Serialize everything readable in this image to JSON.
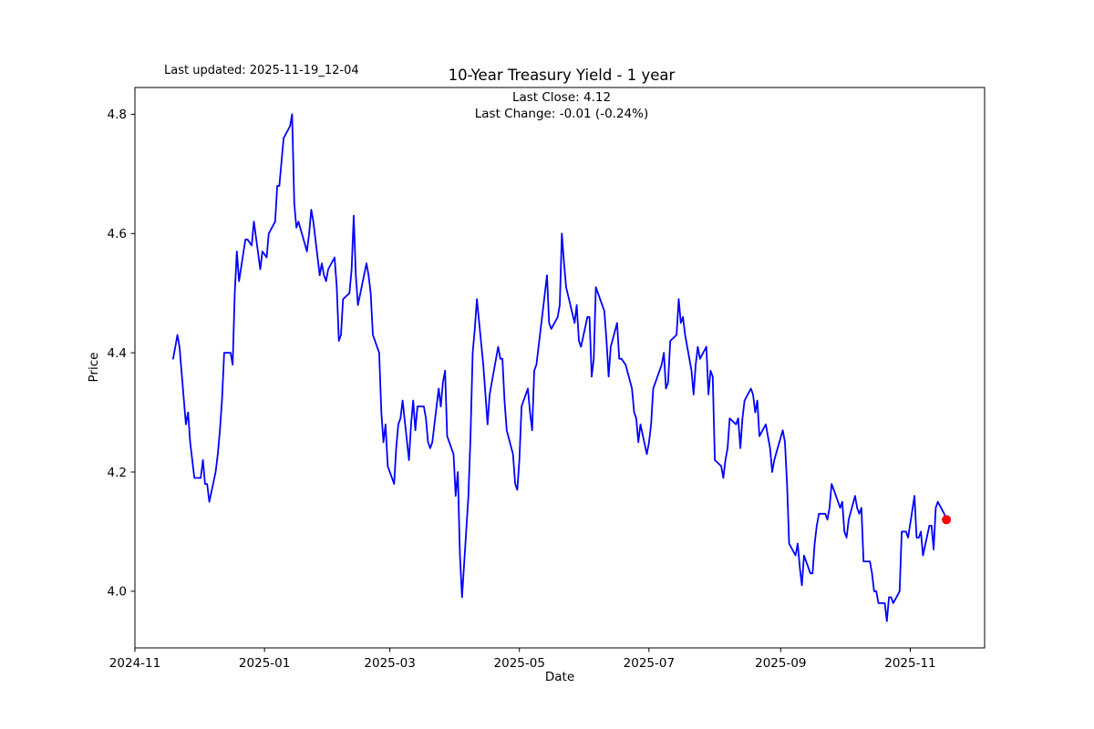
{
  "figure": {
    "last_updated": "Last updated: 2025-11-19_12-04",
    "title": "10-Year Treasury Yield - 1 year",
    "subtitle_line1": "Last Close: 4.12",
    "subtitle_line2": "Last Change: -0.01 (-0.24%)"
  },
  "chart_data": {
    "type": "line",
    "title": "10-Year Treasury Yield - 1 year",
    "xlabel": "Date",
    "ylabel": "Price",
    "grid": false,
    "legend": "none",
    "xlim": [
      "2024-11-01",
      "2025-12-06"
    ],
    "ylim": [
      3.905,
      4.845
    ],
    "yticks": [
      {
        "label": "4.0",
        "value": 4.0
      },
      {
        "label": "4.2",
        "value": 4.2
      },
      {
        "label": "4.4",
        "value": 4.4
      },
      {
        "label": "4.6",
        "value": 4.6
      },
      {
        "label": "4.8",
        "value": 4.8
      }
    ],
    "xticks": [
      {
        "label": "2024-11",
        "date": "2024-11-01"
      },
      {
        "label": "2025-01",
        "date": "2025-01-01"
      },
      {
        "label": "2025-03",
        "date": "2025-03-01"
      },
      {
        "label": "2025-05",
        "date": "2025-05-01"
      },
      {
        "label": "2025-07",
        "date": "2025-07-01"
      },
      {
        "label": "2025-09",
        "date": "2025-09-01"
      },
      {
        "label": "2025-11",
        "date": "2025-11-01"
      }
    ],
    "last_close": 4.12,
    "last_change": -0.01,
    "last_change_pct": "-0.24%",
    "last_point": {
      "date": "2025-11-18",
      "value": 4.12,
      "color": "#ff0000"
    },
    "series": [
      {
        "name": "10-Year Treasury Yield",
        "color": "#0000ff",
        "points": [
          [
            "2024-11-19",
            4.39
          ],
          [
            "2024-11-20",
            4.41
          ],
          [
            "2024-11-21",
            4.43
          ],
          [
            "2024-11-22",
            4.41
          ],
          [
            "2024-11-25",
            4.28
          ],
          [
            "2024-11-26",
            4.3
          ],
          [
            "2024-11-27",
            4.25
          ],
          [
            "2024-11-29",
            4.19
          ],
          [
            "2024-12-02",
            4.19
          ],
          [
            "2024-12-03",
            4.22
          ],
          [
            "2024-12-04",
            4.18
          ],
          [
            "2024-12-05",
            4.18
          ],
          [
            "2024-12-06",
            4.15
          ],
          [
            "2024-12-09",
            4.2
          ],
          [
            "2024-12-10",
            4.23
          ],
          [
            "2024-12-11",
            4.27
          ],
          [
            "2024-12-12",
            4.32
          ],
          [
            "2024-12-13",
            4.4
          ],
          [
            "2024-12-16",
            4.4
          ],
          [
            "2024-12-17",
            4.38
          ],
          [
            "2024-12-18",
            4.5
          ],
          [
            "2024-12-19",
            4.57
          ],
          [
            "2024-12-20",
            4.52
          ],
          [
            "2024-12-23",
            4.59
          ],
          [
            "2024-12-24",
            4.59
          ],
          [
            "2024-12-26",
            4.58
          ],
          [
            "2024-12-27",
            4.62
          ],
          [
            "2024-12-30",
            4.54
          ],
          [
            "2024-12-31",
            4.57
          ],
          [
            "2025-01-02",
            4.56
          ],
          [
            "2025-01-03",
            4.6
          ],
          [
            "2025-01-06",
            4.62
          ],
          [
            "2025-01-07",
            4.68
          ],
          [
            "2025-01-08",
            4.68
          ],
          [
            "2025-01-10",
            4.76
          ],
          [
            "2025-01-13",
            4.78
          ],
          [
            "2025-01-14",
            4.8
          ],
          [
            "2025-01-15",
            4.65
          ],
          [
            "2025-01-16",
            4.61
          ],
          [
            "2025-01-17",
            4.62
          ],
          [
            "2025-01-21",
            4.57
          ],
          [
            "2025-01-22",
            4.6
          ],
          [
            "2025-01-23",
            4.64
          ],
          [
            "2025-01-24",
            4.62
          ],
          [
            "2025-01-27",
            4.53
          ],
          [
            "2025-01-28",
            4.55
          ],
          [
            "2025-01-29",
            4.53
          ],
          [
            "2025-01-30",
            4.52
          ],
          [
            "2025-01-31",
            4.54
          ],
          [
            "2025-02-03",
            4.56
          ],
          [
            "2025-02-04",
            4.51
          ],
          [
            "2025-02-05",
            4.42
          ],
          [
            "2025-02-06",
            4.43
          ],
          [
            "2025-02-07",
            4.49
          ],
          [
            "2025-02-10",
            4.5
          ],
          [
            "2025-02-11",
            4.54
          ],
          [
            "2025-02-12",
            4.63
          ],
          [
            "2025-02-13",
            4.53
          ],
          [
            "2025-02-14",
            4.48
          ],
          [
            "2025-02-18",
            4.55
          ],
          [
            "2025-02-19",
            4.53
          ],
          [
            "2025-02-20",
            4.5
          ],
          [
            "2025-02-21",
            4.43
          ],
          [
            "2025-02-24",
            4.4
          ],
          [
            "2025-02-25",
            4.3
          ],
          [
            "2025-02-26",
            4.25
          ],
          [
            "2025-02-27",
            4.28
          ],
          [
            "2025-02-28",
            4.21
          ],
          [
            "2025-03-03",
            4.18
          ],
          [
            "2025-03-04",
            4.24
          ],
          [
            "2025-03-05",
            4.28
          ],
          [
            "2025-03-06",
            4.29
          ],
          [
            "2025-03-07",
            4.32
          ],
          [
            "2025-03-10",
            4.22
          ],
          [
            "2025-03-11",
            4.28
          ],
          [
            "2025-03-12",
            4.32
          ],
          [
            "2025-03-13",
            4.27
          ],
          [
            "2025-03-14",
            4.31
          ],
          [
            "2025-03-17",
            4.31
          ],
          [
            "2025-03-18",
            4.29
          ],
          [
            "2025-03-19",
            4.25
          ],
          [
            "2025-03-20",
            4.24
          ],
          [
            "2025-03-21",
            4.25
          ],
          [
            "2025-03-24",
            4.34
          ],
          [
            "2025-03-25",
            4.31
          ],
          [
            "2025-03-26",
            4.35
          ],
          [
            "2025-03-27",
            4.37
          ],
          [
            "2025-03-28",
            4.26
          ],
          [
            "2025-03-31",
            4.23
          ],
          [
            "2025-04-01",
            4.16
          ],
          [
            "2025-04-02",
            4.2
          ],
          [
            "2025-04-03",
            4.06
          ],
          [
            "2025-04-04",
            3.99
          ],
          [
            "2025-04-07",
            4.16
          ],
          [
            "2025-04-08",
            4.26
          ],
          [
            "2025-04-09",
            4.4
          ],
          [
            "2025-04-10",
            4.44
          ],
          [
            "2025-04-11",
            4.49
          ],
          [
            "2025-04-14",
            4.38
          ],
          [
            "2025-04-15",
            4.33
          ],
          [
            "2025-04-16",
            4.28
          ],
          [
            "2025-04-17",
            4.33
          ],
          [
            "2025-04-21",
            4.41
          ],
          [
            "2025-04-22",
            4.39
          ],
          [
            "2025-04-23",
            4.39
          ],
          [
            "2025-04-24",
            4.32
          ],
          [
            "2025-04-25",
            4.27
          ],
          [
            "2025-04-28",
            4.23
          ],
          [
            "2025-04-29",
            4.18
          ],
          [
            "2025-04-30",
            4.17
          ],
          [
            "2025-05-01",
            4.22
          ],
          [
            "2025-05-02",
            4.31
          ],
          [
            "2025-05-05",
            4.34
          ],
          [
            "2025-05-06",
            4.3
          ],
          [
            "2025-05-07",
            4.27
          ],
          [
            "2025-05-08",
            4.37
          ],
          [
            "2025-05-09",
            4.38
          ],
          [
            "2025-05-12",
            4.47
          ],
          [
            "2025-05-13",
            4.5
          ],
          [
            "2025-05-14",
            4.53
          ],
          [
            "2025-05-15",
            4.45
          ],
          [
            "2025-05-16",
            4.44
          ],
          [
            "2025-05-19",
            4.46
          ],
          [
            "2025-05-20",
            4.48
          ],
          [
            "2025-05-21",
            4.6
          ],
          [
            "2025-05-22",
            4.55
          ],
          [
            "2025-05-23",
            4.51
          ],
          [
            "2025-05-27",
            4.45
          ],
          [
            "2025-05-28",
            4.48
          ],
          [
            "2025-05-29",
            4.42
          ],
          [
            "2025-05-30",
            4.41
          ],
          [
            "2025-06-02",
            4.46
          ],
          [
            "2025-06-03",
            4.46
          ],
          [
            "2025-06-04",
            4.36
          ],
          [
            "2025-06-05",
            4.39
          ],
          [
            "2025-06-06",
            4.51
          ],
          [
            "2025-06-09",
            4.48
          ],
          [
            "2025-06-10",
            4.47
          ],
          [
            "2025-06-11",
            4.42
          ],
          [
            "2025-06-12",
            4.36
          ],
          [
            "2025-06-13",
            4.41
          ],
          [
            "2025-06-16",
            4.45
          ],
          [
            "2025-06-17",
            4.39
          ],
          [
            "2025-06-18",
            4.39
          ],
          [
            "2025-06-20",
            4.38
          ],
          [
            "2025-06-23",
            4.34
          ],
          [
            "2025-06-24",
            4.3
          ],
          [
            "2025-06-25",
            4.29
          ],
          [
            "2025-06-26",
            4.25
          ],
          [
            "2025-06-27",
            4.28
          ],
          [
            "2025-06-30",
            4.23
          ],
          [
            "2025-07-01",
            4.25
          ],
          [
            "2025-07-02",
            4.28
          ],
          [
            "2025-07-03",
            4.34
          ],
          [
            "2025-07-07",
            4.38
          ],
          [
            "2025-07-08",
            4.4
          ],
          [
            "2025-07-09",
            4.34
          ],
          [
            "2025-07-10",
            4.35
          ],
          [
            "2025-07-11",
            4.42
          ],
          [
            "2025-07-14",
            4.43
          ],
          [
            "2025-07-15",
            4.49
          ],
          [
            "2025-07-16",
            4.45
          ],
          [
            "2025-07-17",
            4.46
          ],
          [
            "2025-07-18",
            4.43
          ],
          [
            "2025-07-21",
            4.37
          ],
          [
            "2025-07-22",
            4.33
          ],
          [
            "2025-07-23",
            4.38
          ],
          [
            "2025-07-24",
            4.41
          ],
          [
            "2025-07-25",
            4.39
          ],
          [
            "2025-07-28",
            4.41
          ],
          [
            "2025-07-29",
            4.33
          ],
          [
            "2025-07-30",
            4.37
          ],
          [
            "2025-07-31",
            4.36
          ],
          [
            "2025-08-01",
            4.22
          ],
          [
            "2025-08-04",
            4.21
          ],
          [
            "2025-08-05",
            4.19
          ],
          [
            "2025-08-06",
            4.22
          ],
          [
            "2025-08-07",
            4.24
          ],
          [
            "2025-08-08",
            4.29
          ],
          [
            "2025-08-11",
            4.28
          ],
          [
            "2025-08-12",
            4.29
          ],
          [
            "2025-08-13",
            4.24
          ],
          [
            "2025-08-14",
            4.29
          ],
          [
            "2025-08-15",
            4.32
          ],
          [
            "2025-08-18",
            4.34
          ],
          [
            "2025-08-19",
            4.33
          ],
          [
            "2025-08-20",
            4.3
          ],
          [
            "2025-08-21",
            4.32
          ],
          [
            "2025-08-22",
            4.26
          ],
          [
            "2025-08-25",
            4.28
          ],
          [
            "2025-08-26",
            4.26
          ],
          [
            "2025-08-27",
            4.24
          ],
          [
            "2025-08-28",
            4.2
          ],
          [
            "2025-08-29",
            4.22
          ],
          [
            "2025-09-02",
            4.27
          ],
          [
            "2025-09-03",
            4.25
          ],
          [
            "2025-09-04",
            4.18
          ],
          [
            "2025-09-05",
            4.08
          ],
          [
            "2025-09-08",
            4.06
          ],
          [
            "2025-09-09",
            4.08
          ],
          [
            "2025-09-10",
            4.04
          ],
          [
            "2025-09-11",
            4.01
          ],
          [
            "2025-09-12",
            4.06
          ],
          [
            "2025-09-15",
            4.03
          ],
          [
            "2025-09-16",
            4.03
          ],
          [
            "2025-09-17",
            4.08
          ],
          [
            "2025-09-18",
            4.11
          ],
          [
            "2025-09-19",
            4.13
          ],
          [
            "2025-09-22",
            4.13
          ],
          [
            "2025-09-23",
            4.12
          ],
          [
            "2025-09-24",
            4.14
          ],
          [
            "2025-09-25",
            4.18
          ],
          [
            "2025-09-26",
            4.17
          ],
          [
            "2025-09-29",
            4.14
          ],
          [
            "2025-09-30",
            4.15
          ],
          [
            "2025-10-01",
            4.1
          ],
          [
            "2025-10-02",
            4.09
          ],
          [
            "2025-10-03",
            4.12
          ],
          [
            "2025-10-06",
            4.16
          ],
          [
            "2025-10-07",
            4.14
          ],
          [
            "2025-10-08",
            4.13
          ],
          [
            "2025-10-09",
            4.14
          ],
          [
            "2025-10-10",
            4.05
          ],
          [
            "2025-10-13",
            4.05
          ],
          [
            "2025-10-14",
            4.03
          ],
          [
            "2025-10-15",
            4.0
          ],
          [
            "2025-10-16",
            4.0
          ],
          [
            "2025-10-17",
            3.98
          ],
          [
            "2025-10-20",
            3.98
          ],
          [
            "2025-10-21",
            3.95
          ],
          [
            "2025-10-22",
            3.99
          ],
          [
            "2025-10-23",
            3.99
          ],
          [
            "2025-10-24",
            3.98
          ],
          [
            "2025-10-27",
            4.0
          ],
          [
            "2025-10-28",
            4.1
          ],
          [
            "2025-10-29",
            4.1
          ],
          [
            "2025-10-30",
            4.1
          ],
          [
            "2025-10-31",
            4.09
          ],
          [
            "2025-11-03",
            4.16
          ],
          [
            "2025-11-04",
            4.09
          ],
          [
            "2025-11-05",
            4.09
          ],
          [
            "2025-11-06",
            4.1
          ],
          [
            "2025-11-07",
            4.06
          ],
          [
            "2025-11-10",
            4.11
          ],
          [
            "2025-11-11",
            4.11
          ],
          [
            "2025-11-12",
            4.07
          ],
          [
            "2025-11-13",
            4.14
          ],
          [
            "2025-11-14",
            4.15
          ],
          [
            "2025-11-17",
            4.13
          ],
          [
            "2025-11-18",
            4.12
          ]
        ]
      }
    ]
  }
}
